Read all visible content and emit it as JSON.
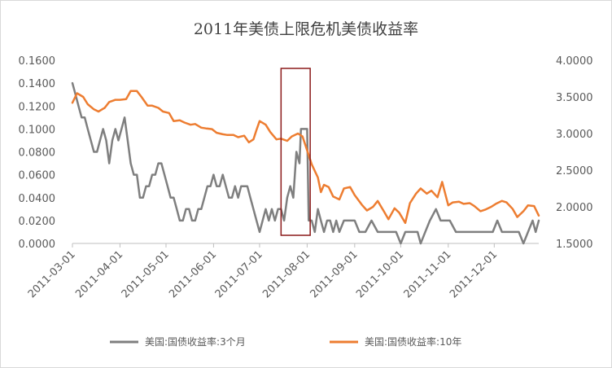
{
  "chart_data": {
    "type": "line",
    "title": "2011年美债上限危机美债收益率",
    "xlabel": "",
    "ylabel": "",
    "y_left": {
      "min": 0.0,
      "max": 0.16,
      "step": 0.02,
      "ticks": [
        "0.0000",
        "0.0200",
        "0.0400",
        "0.0600",
        "0.0800",
        "0.1000",
        "0.1200",
        "0.1400",
        "0.1600"
      ]
    },
    "y_right": {
      "min": 1.5,
      "max": 4.0,
      "step": 0.5,
      "ticks": [
        "1.5000",
        "2.0000",
        "2.5000",
        "3.0000",
        "3.5000",
        "4.0000"
      ]
    },
    "x_range": [
      "2011-03-01",
      "2011-12-30"
    ],
    "x_ticks": [
      "2011-03-01",
      "2011-04-01",
      "2011-05-01",
      "2011-06-01",
      "2011-07-01",
      "2011-08-01",
      "2011-09-01",
      "2011-10-01",
      "2011-11-01",
      "2011-12-01"
    ],
    "highlight": {
      "x_start": "2011-07-15",
      "x_end": "2011-08-03",
      "color": "#8b1a1a"
    },
    "grid": false,
    "legend_position": "bottom",
    "series": [
      {
        "name": "美国:国债收益率:3个月",
        "axis": "left",
        "color": "#7f7f7f",
        "points": [
          [
            "2011-03-01",
            0.14
          ],
          [
            "2011-03-03",
            0.13
          ],
          [
            "2011-03-05",
            0.12
          ],
          [
            "2011-03-07",
            0.11
          ],
          [
            "2011-03-09",
            0.11
          ],
          [
            "2011-03-11",
            0.1
          ],
          [
            "2011-03-13",
            0.09
          ],
          [
            "2011-03-15",
            0.08
          ],
          [
            "2011-03-17",
            0.08
          ],
          [
            "2011-03-19",
            0.09
          ],
          [
            "2011-03-21",
            0.1
          ],
          [
            "2011-03-23",
            0.09
          ],
          [
            "2011-03-25",
            0.07
          ],
          [
            "2011-03-27",
            0.09
          ],
          [
            "2011-03-29",
            0.1
          ],
          [
            "2011-03-31",
            0.09
          ],
          [
            "2011-04-02",
            0.1
          ],
          [
            "2011-04-04",
            0.11
          ],
          [
            "2011-04-06",
            0.09
          ],
          [
            "2011-04-08",
            0.07
          ],
          [
            "2011-04-10",
            0.06
          ],
          [
            "2011-04-12",
            0.06
          ],
          [
            "2011-04-14",
            0.04
          ],
          [
            "2011-04-16",
            0.04
          ],
          [
            "2011-04-18",
            0.05
          ],
          [
            "2011-04-20",
            0.05
          ],
          [
            "2011-04-22",
            0.06
          ],
          [
            "2011-04-24",
            0.06
          ],
          [
            "2011-04-26",
            0.07
          ],
          [
            "2011-04-28",
            0.07
          ],
          [
            "2011-04-30",
            0.06
          ],
          [
            "2011-05-02",
            0.05
          ],
          [
            "2011-05-04",
            0.04
          ],
          [
            "2011-05-06",
            0.04
          ],
          [
            "2011-05-08",
            0.03
          ],
          [
            "2011-05-10",
            0.02
          ],
          [
            "2011-05-12",
            0.02
          ],
          [
            "2011-05-14",
            0.03
          ],
          [
            "2011-05-16",
            0.03
          ],
          [
            "2011-05-18",
            0.02
          ],
          [
            "2011-05-20",
            0.02
          ],
          [
            "2011-05-22",
            0.03
          ],
          [
            "2011-05-24",
            0.03
          ],
          [
            "2011-05-26",
            0.04
          ],
          [
            "2011-05-28",
            0.05
          ],
          [
            "2011-05-30",
            0.05
          ],
          [
            "2011-06-01",
            0.06
          ],
          [
            "2011-06-03",
            0.05
          ],
          [
            "2011-06-05",
            0.05
          ],
          [
            "2011-06-07",
            0.06
          ],
          [
            "2011-06-09",
            0.05
          ],
          [
            "2011-06-11",
            0.04
          ],
          [
            "2011-06-13",
            0.04
          ],
          [
            "2011-06-15",
            0.05
          ],
          [
            "2011-06-17",
            0.04
          ],
          [
            "2011-06-19",
            0.05
          ],
          [
            "2011-06-21",
            0.05
          ],
          [
            "2011-06-23",
            0.05
          ],
          [
            "2011-06-25",
            0.04
          ],
          [
            "2011-06-27",
            0.03
          ],
          [
            "2011-06-29",
            0.02
          ],
          [
            "2011-07-01",
            0.01
          ],
          [
            "2011-07-03",
            0.02
          ],
          [
            "2011-07-05",
            0.03
          ],
          [
            "2011-07-07",
            0.02
          ],
          [
            "2011-07-09",
            0.03
          ],
          [
            "2011-07-11",
            0.02
          ],
          [
            "2011-07-13",
            0.03
          ],
          [
            "2011-07-15",
            0.03
          ],
          [
            "2011-07-17",
            0.02
          ],
          [
            "2011-07-19",
            0.04
          ],
          [
            "2011-07-21",
            0.05
          ],
          [
            "2011-07-23",
            0.04
          ],
          [
            "2011-07-25",
            0.08
          ],
          [
            "2011-07-27",
            0.07
          ],
          [
            "2011-07-28",
            0.1
          ],
          [
            "2011-07-30",
            0.1
          ],
          [
            "2011-08-01",
            0.1
          ],
          [
            "2011-08-02",
            0.02
          ],
          [
            "2011-08-04",
            0.02
          ],
          [
            "2011-08-06",
            0.01
          ],
          [
            "2011-08-08",
            0.03
          ],
          [
            "2011-08-10",
            0.02
          ],
          [
            "2011-08-12",
            0.01
          ],
          [
            "2011-08-14",
            0.02
          ],
          [
            "2011-08-16",
            0.02
          ],
          [
            "2011-08-18",
            0.01
          ],
          [
            "2011-08-20",
            0.02
          ],
          [
            "2011-08-22",
            0.01
          ],
          [
            "2011-08-25",
            0.02
          ],
          [
            "2011-08-28",
            0.02
          ],
          [
            "2011-09-01",
            0.02
          ],
          [
            "2011-09-04",
            0.01
          ],
          [
            "2011-09-08",
            0.01
          ],
          [
            "2011-09-12",
            0.02
          ],
          [
            "2011-09-16",
            0.01
          ],
          [
            "2011-09-20",
            0.01
          ],
          [
            "2011-09-24",
            0.01
          ],
          [
            "2011-09-28",
            0.01
          ],
          [
            "2011-10-01",
            0.0
          ],
          [
            "2011-10-04",
            0.01
          ],
          [
            "2011-10-08",
            0.01
          ],
          [
            "2011-10-12",
            0.01
          ],
          [
            "2011-10-14",
            0.0
          ],
          [
            "2011-10-17",
            0.01
          ],
          [
            "2011-10-20",
            0.02
          ],
          [
            "2011-10-24",
            0.03
          ],
          [
            "2011-10-27",
            0.02
          ],
          [
            "2011-10-30",
            0.02
          ],
          [
            "2011-11-02",
            0.02
          ],
          [
            "2011-11-06",
            0.01
          ],
          [
            "2011-11-10",
            0.01
          ],
          [
            "2011-11-15",
            0.01
          ],
          [
            "2011-11-20",
            0.01
          ],
          [
            "2011-11-25",
            0.01
          ],
          [
            "2011-11-30",
            0.01
          ],
          [
            "2011-12-03",
            0.02
          ],
          [
            "2011-12-06",
            0.01
          ],
          [
            "2011-12-10",
            0.01
          ],
          [
            "2011-12-14",
            0.01
          ],
          [
            "2011-12-17",
            0.01
          ],
          [
            "2011-12-20",
            0.0
          ],
          [
            "2011-12-23",
            0.01
          ],
          [
            "2011-12-26",
            0.02
          ],
          [
            "2011-12-28",
            0.01
          ],
          [
            "2011-12-30",
            0.02
          ]
        ]
      },
      {
        "name": "美国:国债收益率:10年",
        "axis": "right",
        "color": "#ed7d31",
        "points": [
          [
            "2011-03-01",
            3.42
          ],
          [
            "2011-03-04",
            3.55
          ],
          [
            "2011-03-08",
            3.5
          ],
          [
            "2011-03-11",
            3.4
          ],
          [
            "2011-03-15",
            3.33
          ],
          [
            "2011-03-18",
            3.3
          ],
          [
            "2011-03-22",
            3.35
          ],
          [
            "2011-03-25",
            3.43
          ],
          [
            "2011-03-29",
            3.46
          ],
          [
            "2011-04-01",
            3.46
          ],
          [
            "2011-04-05",
            3.47
          ],
          [
            "2011-04-08",
            3.58
          ],
          [
            "2011-04-12",
            3.58
          ],
          [
            "2011-04-15",
            3.5
          ],
          [
            "2011-04-19",
            3.38
          ],
          [
            "2011-04-22",
            3.38
          ],
          [
            "2011-04-26",
            3.35
          ],
          [
            "2011-04-29",
            3.3
          ],
          [
            "2011-05-03",
            3.28
          ],
          [
            "2011-05-06",
            3.17
          ],
          [
            "2011-05-10",
            3.18
          ],
          [
            "2011-05-13",
            3.15
          ],
          [
            "2011-05-17",
            3.12
          ],
          [
            "2011-05-20",
            3.13
          ],
          [
            "2011-05-24",
            3.08
          ],
          [
            "2011-05-27",
            3.07
          ],
          [
            "2011-05-31",
            3.06
          ],
          [
            "2011-06-03",
            3.01
          ],
          [
            "2011-06-07",
            2.99
          ],
          [
            "2011-06-10",
            2.98
          ],
          [
            "2011-06-14",
            2.98
          ],
          [
            "2011-06-17",
            2.95
          ],
          [
            "2011-06-21",
            2.97
          ],
          [
            "2011-06-24",
            2.88
          ],
          [
            "2011-06-27",
            2.92
          ],
          [
            "2011-06-29",
            3.05
          ],
          [
            "2011-07-01",
            3.17
          ],
          [
            "2011-07-05",
            3.12
          ],
          [
            "2011-07-08",
            3.02
          ],
          [
            "2011-07-12",
            2.92
          ],
          [
            "2011-07-15",
            2.93
          ],
          [
            "2011-07-19",
            2.9
          ],
          [
            "2011-07-22",
            2.96
          ],
          [
            "2011-07-26",
            3.0
          ],
          [
            "2011-07-29",
            2.96
          ],
          [
            "2011-08-01",
            2.77
          ],
          [
            "2011-08-04",
            2.58
          ],
          [
            "2011-08-08",
            2.4
          ],
          [
            "2011-08-10",
            2.2
          ],
          [
            "2011-08-12",
            2.3
          ],
          [
            "2011-08-15",
            2.27
          ],
          [
            "2011-08-18",
            2.14
          ],
          [
            "2011-08-22",
            2.1
          ],
          [
            "2011-08-25",
            2.25
          ],
          [
            "2011-08-29",
            2.27
          ],
          [
            "2011-09-01",
            2.16
          ],
          [
            "2011-09-06",
            2.02
          ],
          [
            "2011-09-09",
            1.95
          ],
          [
            "2011-09-13",
            2.0
          ],
          [
            "2011-09-16",
            2.08
          ],
          [
            "2011-09-20",
            1.94
          ],
          [
            "2011-09-23",
            1.83
          ],
          [
            "2011-09-27",
            1.98
          ],
          [
            "2011-09-30",
            1.92
          ],
          [
            "2011-10-04",
            1.78
          ],
          [
            "2011-10-07",
            2.05
          ],
          [
            "2011-10-11",
            2.18
          ],
          [
            "2011-10-14",
            2.25
          ],
          [
            "2011-10-18",
            2.18
          ],
          [
            "2011-10-21",
            2.22
          ],
          [
            "2011-10-25",
            2.13
          ],
          [
            "2011-10-28",
            2.34
          ],
          [
            "2011-11-01",
            2.02
          ],
          [
            "2011-11-04",
            2.06
          ],
          [
            "2011-11-08",
            2.07
          ],
          [
            "2011-11-11",
            2.04
          ],
          [
            "2011-11-15",
            2.05
          ],
          [
            "2011-11-18",
            2.01
          ],
          [
            "2011-11-22",
            1.94
          ],
          [
            "2011-11-25",
            1.96
          ],
          [
            "2011-11-29",
            2.0
          ],
          [
            "2011-12-02",
            2.04
          ],
          [
            "2011-12-06",
            2.08
          ],
          [
            "2011-12-09",
            2.06
          ],
          [
            "2011-12-13",
            1.97
          ],
          [
            "2011-12-16",
            1.86
          ],
          [
            "2011-12-20",
            1.94
          ],
          [
            "2011-12-23",
            2.02
          ],
          [
            "2011-12-27",
            2.01
          ],
          [
            "2011-12-30",
            1.88
          ]
        ]
      }
    ]
  }
}
